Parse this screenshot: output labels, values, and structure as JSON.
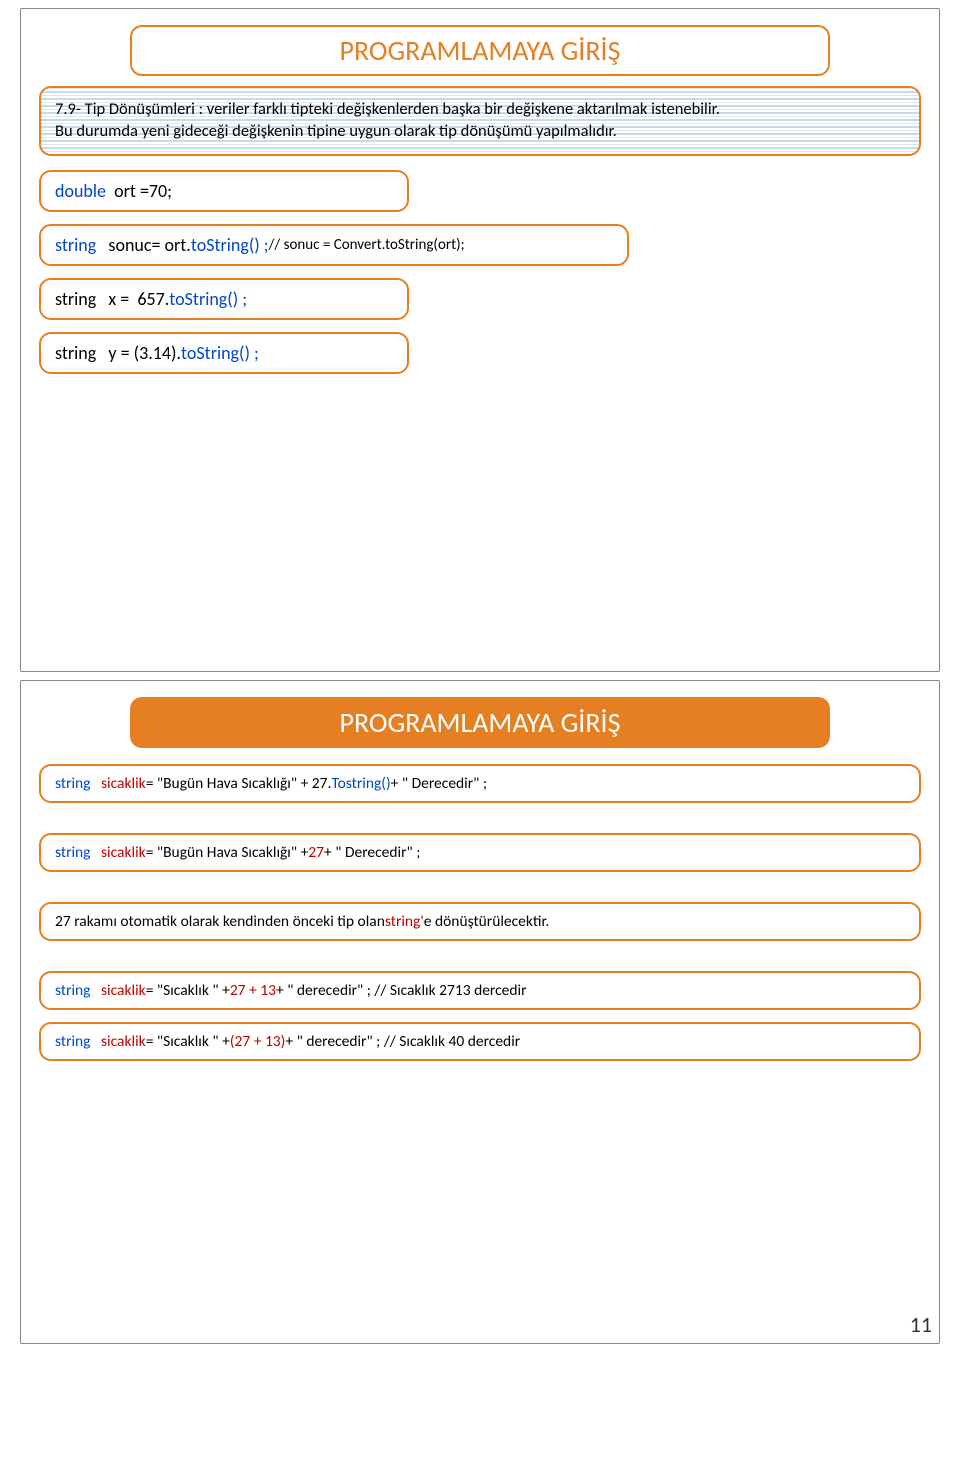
{
  "page_number": "11",
  "slide1": {
    "title": "PROGRAMLAMAYA GİRİŞ",
    "desc_a": "7.9- Tip Dönüşümleri :  veriler farklı tipteki değişkenlerden başka bir değişkene aktarılmak istenebilir.",
    "desc_b": "Bu durumda yeni gideceği değişkenin tipine uygun olarak tip dönüşümü yapılmalıdır.",
    "box1": {
      "kw": "double",
      "rest": "  ort =70;"
    },
    "box2": {
      "kw": "string",
      "a": "   sonuc= ort.",
      "b": "toString() ; ",
      "c": "//    sonuc = Convert.toString(ort);"
    },
    "box3": {
      "kw": "string",
      "a": "   x =  657.",
      "b": "toString() ;"
    },
    "box4": {
      "kw": "string",
      "a": "   y = (3.14).",
      "b": "toString() ;"
    }
  },
  "slide2": {
    "title": "PROGRAMLAMAYA GİRİŞ",
    "l1": {
      "kw": "string",
      "a": "   sicaklik",
      "b": "= \"Bugün Hava Sıcaklığı\" + 27.",
      "c": "Tostring()",
      "d": " + \" Derecedir\" ;"
    },
    "l2": {
      "kw": "string",
      "a": "   sicaklik",
      "b": "= \"Bugün Hava Sıcaklığı\" + ",
      "c": "27",
      "d": " + \" Derecedir\" ;"
    },
    "l3": {
      "a": "27 rakamı otomatik olarak kendinden önceki tip olan ",
      "b": "string'",
      "c": " e dönüştürülecektir."
    },
    "l4": {
      "kw": "string",
      "a": "   sicaklik",
      "b": "= \"Sıcaklık \" + ",
      "c": "27 + 13",
      "d": " + \" derecedir\" ;  //  Sıcaklık 2713 dercedir"
    },
    "l5": {
      "kw": "string",
      "a": "   sicaklik",
      "b": "= \"Sıcaklık \" + ",
      "c": "(27 + 13)",
      "d": " + \" derecedir\" ;  //  Sıcaklık  40 dercedir"
    }
  }
}
